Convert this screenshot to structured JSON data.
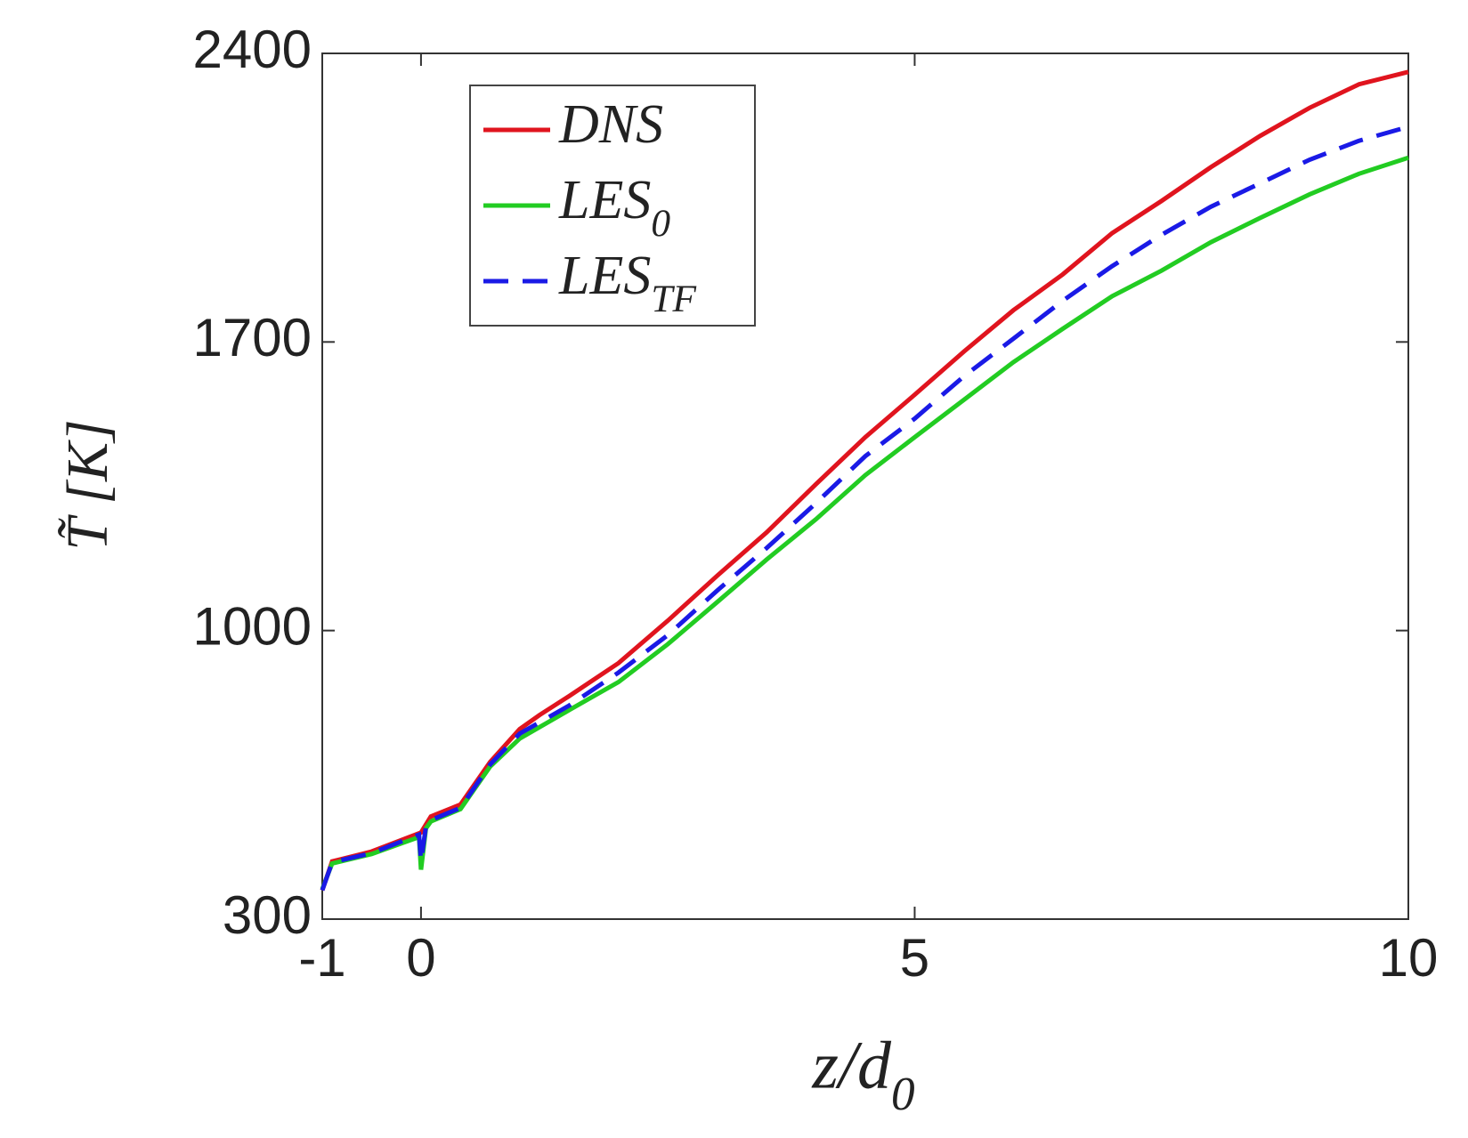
{
  "chart_data": {
    "type": "line",
    "xlabel": "z/d0",
    "ylabel": "T̃ [K]",
    "xlim": [
      -1,
      10
    ],
    "ylim": [
      300,
      2400
    ],
    "xticks": [
      -1,
      0,
      5,
      10
    ],
    "yticks": [
      300,
      1000,
      1700,
      2400
    ],
    "grid": false,
    "legend": "upper left",
    "series": [
      {
        "name": "DNS",
        "color": "#e0141e",
        "dash": "solid",
        "x": [
          -1,
          -0.9,
          -0.5,
          0,
          0.1,
          0.4,
          0.7,
          1,
          1.2,
          1.5,
          2,
          2.5,
          3,
          3.5,
          4,
          4.5,
          5,
          5.5,
          6,
          6.5,
          7,
          7.5,
          8,
          8.5,
          9,
          9.5,
          10
        ],
        "values": [
          370,
          440,
          464,
          510,
          549,
          578,
          681,
          761,
          795,
          841,
          921,
          1024,
          1133,
          1238,
          1355,
          1469,
          1572,
          1677,
          1777,
          1864,
          1964,
          2042,
          2124,
          2200,
          2268,
          2325,
          2355
        ]
      },
      {
        "name": "LES0",
        "color": "#22cc22",
        "dash": "solid",
        "x": [
          -1,
          -0.9,
          -0.5,
          -0.02,
          0,
          0.05,
          0.1,
          0.4,
          0.7,
          1,
          1.5,
          2,
          2.5,
          3,
          3.5,
          4,
          4.5,
          5,
          5.5,
          6,
          6.5,
          7,
          7.5,
          8,
          8.5,
          9,
          9.5,
          10
        ],
        "values": [
          373,
          435,
          458,
          499,
          420,
          520,
          537,
          567,
          670,
          738,
          807,
          875,
          967,
          1069,
          1172,
          1270,
          1377,
          1469,
          1560,
          1651,
          1732,
          1811,
          1873,
          1942,
          2001,
          2058,
          2108,
          2147
        ]
      },
      {
        "name": "LESTF",
        "color": "#1a1ae6",
        "dash": "dashed",
        "x": [
          -1,
          -0.9,
          -0.5,
          -0.02,
          0,
          0.05,
          0.1,
          0.4,
          0.7,
          1,
          1.5,
          2,
          2.5,
          3,
          3.5,
          4,
          4.5,
          5,
          5.5,
          6,
          6.5,
          7,
          7.5,
          8,
          8.5,
          9,
          9.5,
          10
        ],
        "values": [
          370,
          438,
          460,
          505,
          440,
          525,
          540,
          570,
          675,
          750,
          818,
          898,
          989,
          1097,
          1200,
          1309,
          1423,
          1514,
          1617,
          1708,
          1800,
          1884,
          1960,
          2028,
          2085,
          2142,
          2188,
          2222
        ]
      }
    ]
  }
}
